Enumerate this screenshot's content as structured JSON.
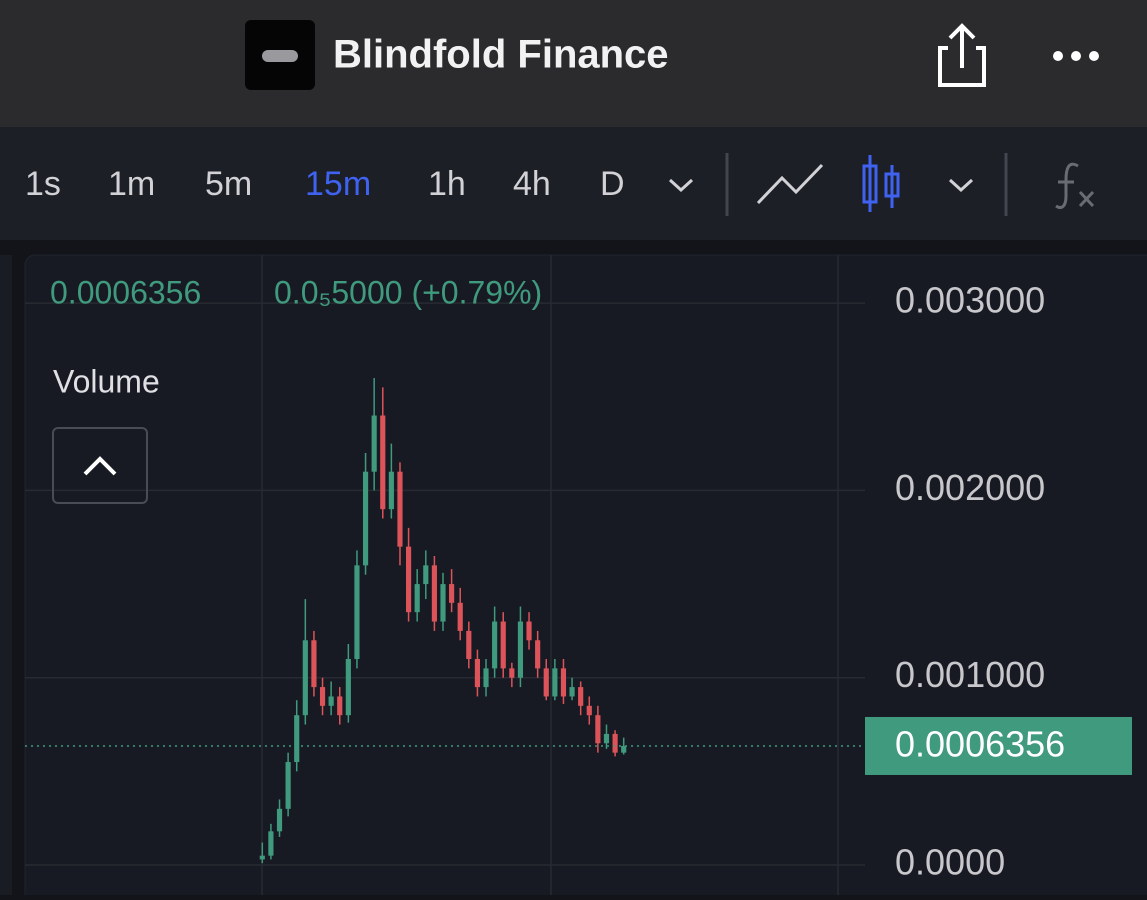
{
  "header": {
    "title": "Blindfold Finance"
  },
  "toolbar": {
    "intervals": [
      "1s",
      "1m",
      "5m",
      "15m",
      "1h",
      "4h",
      "D"
    ],
    "active_interval": 3
  },
  "chart_data": {
    "type": "candlestick",
    "open": [
      3e-05,
      5e-05,
      0.00018,
      0.0003,
      0.00055,
      0.0008,
      0.0012,
      0.00095,
      0.00085,
      0.0009,
      0.0008,
      0.0011,
      0.0016,
      0.0021,
      0.0024,
      0.0019,
      0.0021,
      0.0017,
      0.00135,
      0.0015,
      0.0016,
      0.0013,
      0.0015,
      0.0014,
      0.00125,
      0.0011,
      0.00095,
      0.00105,
      0.0013,
      0.00105,
      0.001,
      0.0013,
      0.0012,
      0.00105,
      0.0009,
      0.00105,
      0.0009,
      0.00095,
      0.00085,
      0.0008,
      0.00065,
      0.0007,
      0.0006
    ],
    "high": [
      0.00012,
      0.00022,
      0.00035,
      0.0006,
      0.00088,
      0.00142,
      0.00125,
      0.001,
      0.00098,
      0.00095,
      0.00118,
      0.00168,
      0.0022,
      0.0026,
      0.00255,
      0.00225,
      0.00215,
      0.0018,
      0.00158,
      0.00168,
      0.00165,
      0.00156,
      0.00158,
      0.00148,
      0.0013,
      0.00115,
      0.0011,
      0.00138,
      0.00135,
      0.00108,
      0.00138,
      0.00135,
      0.00125,
      0.0011,
      0.0011,
      0.0011,
      0.001,
      0.00098,
      0.0009,
      0.00085,
      0.00075,
      0.00072,
      0.00068
    ],
    "low": [
      1e-05,
      3e-05,
      0.00015,
      0.00026,
      0.0005,
      0.00075,
      0.0009,
      0.0008,
      0.0008,
      0.00075,
      0.00076,
      0.00105,
      0.00155,
      0.002,
      0.00185,
      0.00185,
      0.0016,
      0.0013,
      0.0013,
      0.00142,
      0.00125,
      0.00125,
      0.00135,
      0.0012,
      0.00105,
      0.0009,
      0.0009,
      0.001,
      0.001,
      0.00095,
      0.00095,
      0.00115,
      0.001,
      0.00088,
      0.00088,
      0.00086,
      0.00088,
      0.0008,
      0.00075,
      0.0006,
      0.00062,
      0.00058,
      0.00059
    ],
    "close": [
      5e-05,
      0.00018,
      0.0003,
      0.00055,
      0.0008,
      0.0012,
      0.00095,
      0.00085,
      0.0009,
      0.0008,
      0.0011,
      0.0016,
      0.0021,
      0.0024,
      0.0019,
      0.0021,
      0.0017,
      0.00135,
      0.0015,
      0.0016,
      0.0013,
      0.0015,
      0.0014,
      0.00125,
      0.0011,
      0.00095,
      0.00105,
      0.0013,
      0.00105,
      0.001,
      0.0013,
      0.0012,
      0.00105,
      0.0009,
      0.00105,
      0.0009,
      0.00095,
      0.00085,
      0.0008,
      0.00065,
      0.0007,
      0.0006,
      0.0006356
    ],
    "up_color": "#3f9a7e",
    "down_color": "#dc5459",
    "ylim": [
      -0.00016,
      0.003257
    ],
    "yticks": [
      {
        "value": 0,
        "label": "0.0000"
      },
      {
        "value": 0.001,
        "label": "0.001000"
      },
      {
        "value": 0.002,
        "label": "0.002000"
      },
      {
        "value": 0.003,
        "label": "0.003000"
      }
    ],
    "grid": true,
    "last_price": 0.0006356,
    "last_price_color": "#3f9a7e",
    "change": "0.0₅5000 (+0.79%)",
    "indicator": "Volume"
  }
}
